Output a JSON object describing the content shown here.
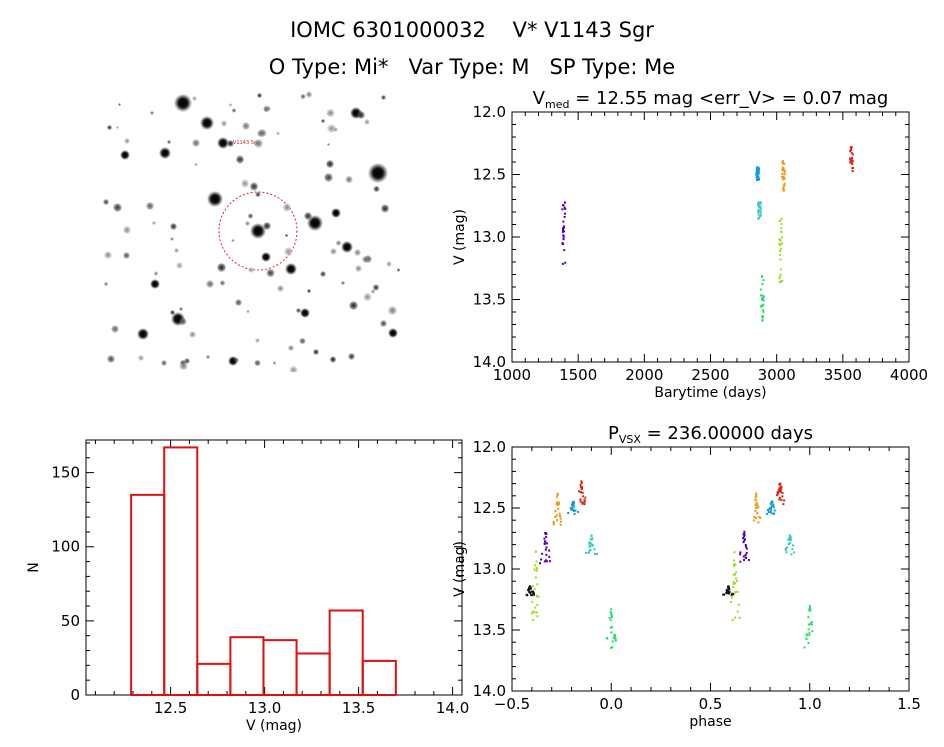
{
  "header": {
    "line1": "IOMC 6301000032    V* V1143 Sgr",
    "line2": "O Type: Mi*   Var Type: M   SP Type: Me"
  },
  "colors": {
    "histogram_bar": "#dd1111",
    "finder_circle": "#dd2222",
    "seasons": [
      "#5500aa",
      "#1199dd",
      "#33ccbb",
      "#22dd66",
      "#99dd22",
      "#ee9911",
      "#dd2211",
      "#111111"
    ]
  },
  "chart_data": [
    {
      "type": "image",
      "name": "finder-chart",
      "text_labels": [
        "V1143 Sgr"
      ]
    },
    {
      "type": "scatter",
      "name": "light-curve",
      "title_parts": {
        "symbol": "V",
        "subscript": "med",
        "rest": " = 12.55 mag <err_V> = 0.07 mag"
      },
      "xlabel": "Barytime (days)",
      "ylabel": "V (mag)",
      "xlim": [
        1000,
        4000
      ],
      "ylim": [
        14.0,
        12.0
      ],
      "y_inverted": true,
      "xticks": [
        1000,
        1500,
        2000,
        2500,
        3000,
        3500,
        4000
      ],
      "yticks": [
        12.0,
        12.5,
        13.0,
        13.5,
        14.0
      ],
      "ytick_labels": [
        "12.0",
        "12.5",
        "13.0",
        "13.5",
        "14.0"
      ],
      "seasons": [
        {
          "color_index": 0,
          "x": 1380,
          "y_range": [
            12.68,
            13.24
          ]
        },
        {
          "color_index": 1,
          "x": 2845,
          "y_range": [
            12.44,
            12.55
          ]
        },
        {
          "color_index": 2,
          "x": 2860,
          "y_range": [
            12.72,
            12.88
          ]
        },
        {
          "color_index": 3,
          "x": 2880,
          "y_range": [
            13.3,
            13.68
          ]
        },
        {
          "color_index": 4,
          "x": 3020,
          "y_range": [
            12.82,
            13.42
          ]
        },
        {
          "color_index": 5,
          "x": 3040,
          "y_range": [
            12.38,
            12.64
          ]
        },
        {
          "color_index": 6,
          "x": 3555,
          "y_range": [
            12.28,
            12.48
          ]
        }
      ]
    },
    {
      "type": "bar",
      "name": "magnitude-histogram",
      "xlabel": "V (mag)",
      "ylabel": "N",
      "xlim": [
        12.05,
        14.05
      ],
      "ylim": [
        0,
        172
      ],
      "xticks": [
        12.5,
        13.0,
        13.5,
        14.0
      ],
      "xtick_labels": [
        "12.5",
        "13.0",
        "13.5",
        "14.0"
      ],
      "yticks": [
        0,
        50,
        100,
        150
      ],
      "bin_start": 12.29,
      "bin_width": 0.176,
      "values": [
        135,
        167,
        21,
        39,
        37,
        28,
        57,
        23,
        0
      ]
    },
    {
      "type": "scatter",
      "name": "phase-curve",
      "title_parts": {
        "symbol": "P",
        "subscript": "VSX",
        "rest": " = 236.00000 days"
      },
      "xlabel": "phase",
      "ylabel": "V (mag)",
      "xlim": [
        -0.5,
        1.5
      ],
      "ylim": [
        14.0,
        12.0
      ],
      "y_inverted": true,
      "xticks": [
        -0.5,
        0.0,
        0.5,
        1.0,
        1.5
      ],
      "xtick_labels": [
        "−0.5",
        "0.0",
        "0.5",
        "1.0",
        "1.5"
      ],
      "yticks": [
        12.0,
        12.5,
        13.0,
        13.5,
        14.0
      ],
      "ytick_labels": [
        "12.0",
        "12.5",
        "13.0",
        "13.5",
        "14.0"
      ],
      "clusters": [
        {
          "color_index": 0,
          "phase": -0.33,
          "y_range": [
            12.68,
            12.96
          ]
        },
        {
          "color_index": 1,
          "phase": -0.19,
          "y_range": [
            12.44,
            12.55
          ]
        },
        {
          "color_index": 2,
          "phase": -0.1,
          "y_range": [
            12.72,
            12.88
          ]
        },
        {
          "color_index": 3,
          "phase": 0.0,
          "y_range": [
            13.3,
            13.66
          ]
        },
        {
          "color_index": 4,
          "phase": -0.38,
          "y_range": [
            12.84,
            13.42
          ]
        },
        {
          "color_index": 5,
          "phase": -0.27,
          "y_range": [
            12.38,
            12.64
          ]
        },
        {
          "color_index": 6,
          "phase": -0.15,
          "y_range": [
            12.28,
            12.48
          ]
        },
        {
          "color_index": 7,
          "phase": -0.41,
          "y_range": [
            13.14,
            13.22
          ]
        }
      ]
    }
  ]
}
